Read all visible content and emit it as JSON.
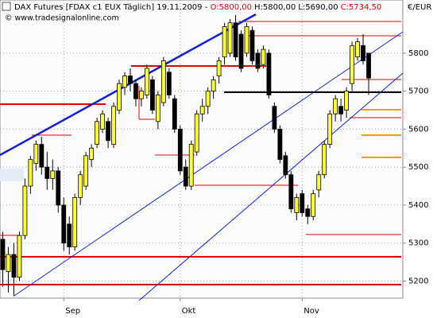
{
  "chart_data": {
    "type": "candlestick",
    "title": "DAX Futures [FDAX c1 EUX  Täglich] 19.11.2009 -",
    "title_open": "O:5800,00",
    "title_high": "H:5800,00",
    "title_low": "L:5690,00",
    "title_close": "C:5734,50",
    "watermark": "© www.tradesignalonline.com",
    "y_axis_label": "€/EUR",
    "categories": [
      null,
      null,
      null,
      null,
      null,
      null,
      null,
      null,
      null,
      null,
      null,
      "Sep",
      null,
      null,
      null,
      null,
      null,
      null,
      null,
      null,
      null,
      null,
      null,
      null,
      null,
      null,
      null,
      null,
      null,
      null,
      null,
      null,
      "Okt",
      null,
      null,
      null,
      null,
      null,
      null,
      null,
      null,
      null,
      null,
      null,
      null,
      null,
      null,
      null,
      null,
      null,
      null,
      null,
      null,
      null,
      "Nov",
      null,
      null,
      null,
      null,
      null,
      null,
      null,
      null,
      null,
      null,
      null,
      null
    ],
    "open": [
      5310,
      5225,
      5270,
      5210,
      5320,
      5450,
      5510,
      5560,
      5500,
      5470,
      5490,
      5400,
      5350,
      5290,
      5420,
      5450,
      5520,
      5560,
      5600,
      5620,
      5560,
      5650,
      5710,
      5740,
      5720,
      5680,
      5690,
      5730,
      5620,
      5670,
      5750,
      5680,
      5600,
      5500,
      5450,
      5540,
      5640,
      5660,
      5700,
      5740,
      5790,
      5800,
      5880,
      5850,
      5800,
      5860,
      5800,
      5770,
      5800,
      5660,
      5600,
      5530,
      5480,
      5380,
      5430,
      5390,
      5370,
      5440,
      5480,
      5560,
      5640,
      5660,
      5650,
      5720,
      5790,
      5820,
      5800
    ],
    "high": [
      5330,
      5290,
      5300,
      5330,
      5470,
      5530,
      5570,
      5580,
      5540,
      5520,
      5500,
      5420,
      5370,
      5430,
      5490,
      5540,
      5560,
      5630,
      5650,
      5630,
      5670,
      5730,
      5750,
      5760,
      5730,
      5710,
      5770,
      5740,
      5700,
      5790,
      5760,
      5690,
      5610,
      5520,
      5570,
      5650,
      5680,
      5710,
      5740,
      5790,
      5880,
      5890,
      5900,
      5860,
      5880,
      5870,
      5810,
      5820,
      5810,
      5670,
      5610,
      5540,
      5490,
      5430,
      5440,
      5400,
      5440,
      5490,
      5570,
      5650,
      5690,
      5680,
      5710,
      5830,
      5840,
      5850,
      5800
    ],
    "low": [
      5185,
      5170,
      5160,
      5200,
      5310,
      5430,
      5490,
      5480,
      5440,
      5440,
      5380,
      5280,
      5270,
      5280,
      5400,
      5440,
      5500,
      5550,
      5590,
      5550,
      5550,
      5640,
      5690,
      5700,
      5660,
      5660,
      5680,
      5640,
      5600,
      5660,
      5680,
      5590,
      5480,
      5440,
      5440,
      5530,
      5620,
      5640,
      5680,
      5720,
      5770,
      5790,
      5780,
      5750,
      5790,
      5770,
      5750,
      5760,
      5680,
      5590,
      5510,
      5470,
      5380,
      5360,
      5370,
      5350,
      5360,
      5420,
      5470,
      5550,
      5620,
      5620,
      5630,
      5700,
      5780,
      5770,
      5690
    ],
    "close": [
      5230,
      5270,
      5210,
      5320,
      5450,
      5520,
      5560,
      5500,
      5470,
      5490,
      5400,
      5300,
      5290,
      5420,
      5480,
      5530,
      5550,
      5620,
      5640,
      5570,
      5660,
      5720,
      5740,
      5720,
      5680,
      5700,
      5760,
      5650,
      5690,
      5780,
      5690,
      5600,
      5490,
      5450,
      5560,
      5640,
      5660,
      5700,
      5730,
      5780,
      5870,
      5880,
      5790,
      5760,
      5870,
      5780,
      5760,
      5810,
      5690,
      5600,
      5520,
      5480,
      5390,
      5420,
      5380,
      5370,
      5430,
      5480,
      5560,
      5640,
      5680,
      5640,
      5700,
      5820,
      5830,
      5780,
      5734.5
    ],
    "up_color": "#ffff33",
    "down_color": "#000000",
    "ylim": [
      5155,
      5940
    ],
    "yticks": [
      5200,
      5300,
      5400,
      5500,
      5600,
      5700,
      5800
    ],
    "grid": true
  }
}
